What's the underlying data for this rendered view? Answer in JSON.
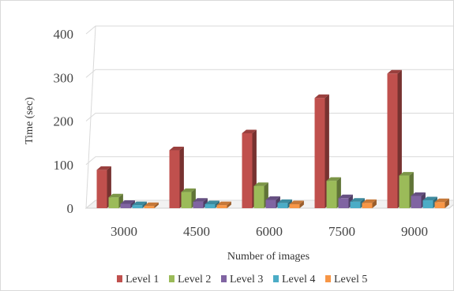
{
  "chart_data": {
    "type": "bar",
    "style": "3d-clustered-column",
    "title": "",
    "xlabel": "Number of images",
    "ylabel": "Time (sec)",
    "ylim": [
      0,
      400
    ],
    "yticks": [
      0,
      100,
      200,
      300,
      400
    ],
    "grid": true,
    "legend_position": "bottom",
    "categories": [
      "3000",
      "4500",
      "6000",
      "7500",
      "9000"
    ],
    "series": [
      {
        "name": "Level 1",
        "color": "#c0504d",
        "values": [
          88,
          133,
          172,
          253,
          309
        ]
      },
      {
        "name": "Level 2",
        "color": "#9bbb59",
        "values": [
          25,
          37,
          51,
          63,
          75
        ]
      },
      {
        "name": "Level 3",
        "color": "#8064a2",
        "values": [
          10,
          15,
          19,
          23,
          28
        ]
      },
      {
        "name": "Level 4",
        "color": "#4bacc6",
        "values": [
          7,
          9,
          12,
          15,
          18
        ]
      },
      {
        "name": "Level 5",
        "color": "#f79646",
        "values": [
          5,
          7,
          9,
          12,
          14
        ]
      }
    ]
  }
}
